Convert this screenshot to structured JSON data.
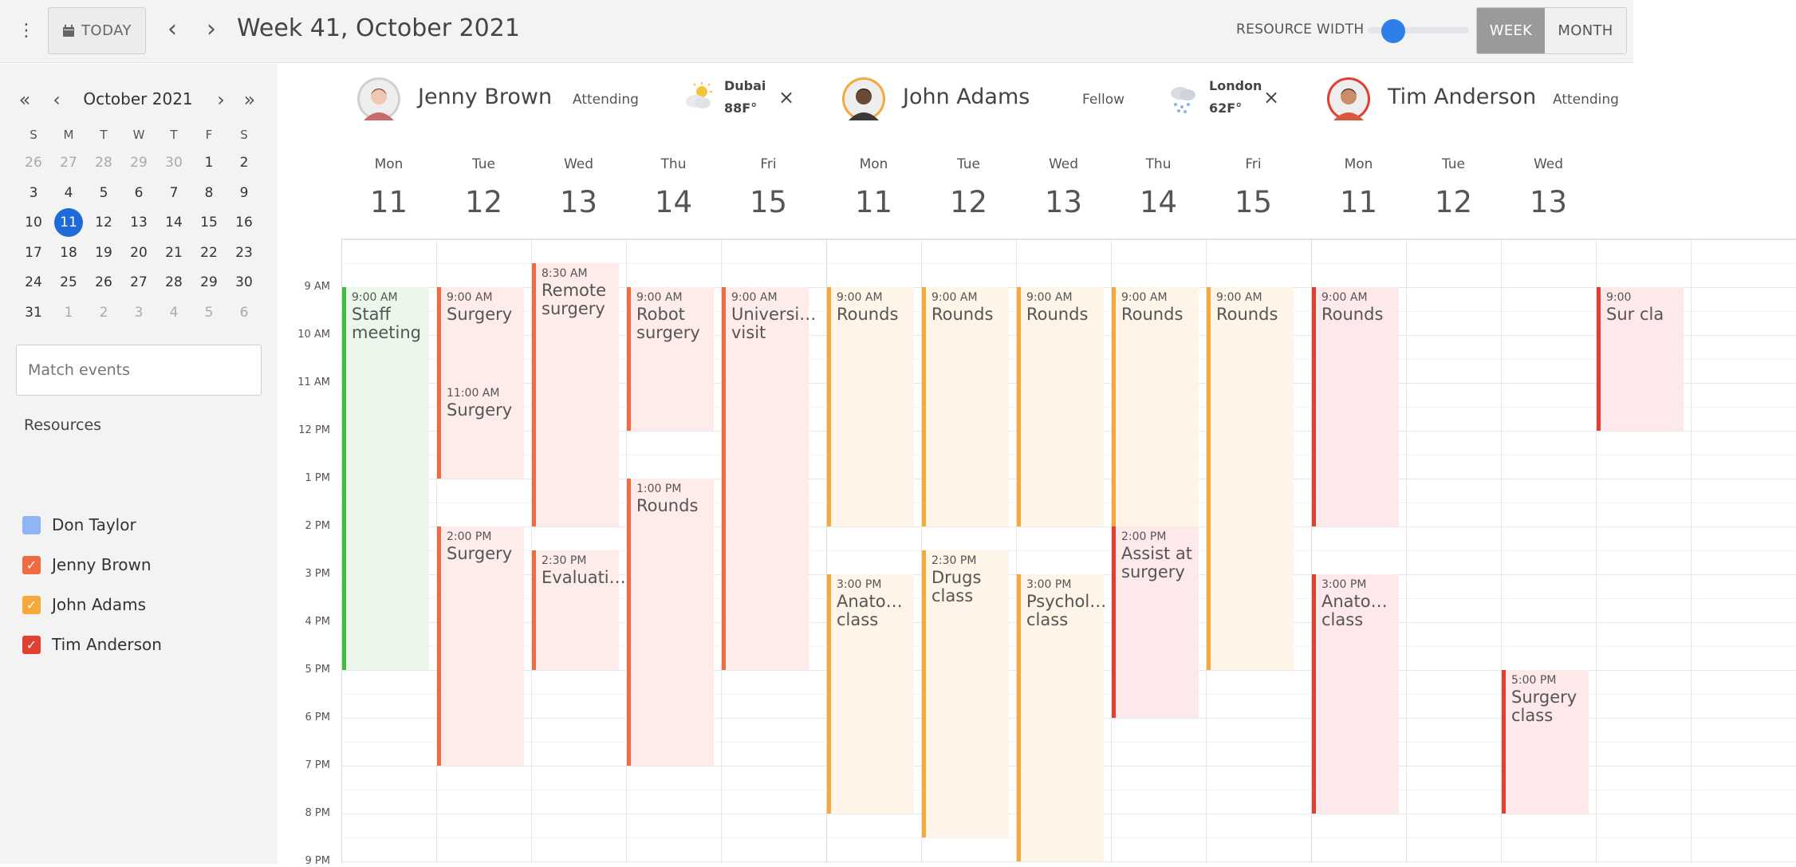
{
  "toolbar": {
    "today_label": "TODAY",
    "range_title": "Week 41, October 2021",
    "resource_width_label": "RESOURCE WIDTH",
    "resource_width_value": 0.25,
    "view_week": "WEEK",
    "view_month": "MONTH",
    "active_view": "WEEK"
  },
  "mini_calendar": {
    "title": "October 2021",
    "dow": [
      "S",
      "M",
      "T",
      "W",
      "T",
      "F",
      "S"
    ],
    "weeks": [
      [
        "26",
        "27",
        "28",
        "29",
        "30",
        "1",
        "2"
      ],
      [
        "3",
        "4",
        "5",
        "6",
        "7",
        "8",
        "9"
      ],
      [
        "10",
        "11",
        "12",
        "13",
        "14",
        "15",
        "16"
      ],
      [
        "17",
        "18",
        "19",
        "20",
        "21",
        "22",
        "23"
      ],
      [
        "24",
        "25",
        "26",
        "27",
        "28",
        "29",
        "30"
      ],
      [
        "31",
        "1",
        "2",
        "3",
        "4",
        "5",
        "6"
      ]
    ],
    "muted": [
      [
        0,
        0
      ],
      [
        0,
        1
      ],
      [
        0,
        2
      ],
      [
        0,
        3
      ],
      [
        0,
        4
      ],
      [
        5,
        1
      ],
      [
        5,
        2
      ],
      [
        5,
        3
      ],
      [
        5,
        4
      ],
      [
        5,
        5
      ],
      [
        5,
        6
      ]
    ],
    "selected": [
      2,
      1
    ]
  },
  "search": {
    "placeholder": "Match events"
  },
  "resources_title": "Resources",
  "resources": [
    {
      "name": "Don Taylor",
      "color": "#8fb5f5",
      "checked": false
    },
    {
      "name": "Jenny Brown",
      "color": "#f06b41",
      "checked": true
    },
    {
      "name": "John Adams",
      "color": "#f4a93a",
      "checked": true
    },
    {
      "name": "Tim Anderson",
      "color": "#e23e32",
      "checked": true
    }
  ],
  "time_labels": [
    "9 AM",
    "10 AM",
    "11 AM",
    "12 PM",
    "1 PM",
    "2 PM",
    "3 PM",
    "4 PM",
    "5 PM",
    "6 PM",
    "7 PM",
    "8 PM",
    "9 PM"
  ],
  "columns": [
    {
      "name": "Jenny Brown",
      "role": "Attending",
      "city": "Dubai",
      "temp": "88F°",
      "weather": "sun-cloud-icon",
      "days": [
        {
          "d": "Mon",
          "n": "11"
        },
        {
          "d": "Tue",
          "n": "12"
        },
        {
          "d": "Wed",
          "n": "13"
        },
        {
          "d": "Thu",
          "n": "14"
        },
        {
          "d": "Fri",
          "n": "15"
        }
      ],
      "events": [
        {
          "day": 0,
          "start": 9,
          "end": 17,
          "time": "9:00 AM",
          "title": "Staff meeting",
          "bar": "#3cbf3c",
          "bg": "#eaf7ea"
        },
        {
          "day": 1,
          "start": 9,
          "end": 11,
          "time": "9:00 AM",
          "title": "Surgery",
          "bar": "#f06b41",
          "bg": "#fdecea"
        },
        {
          "day": 1,
          "start": 11,
          "end": 13,
          "time": "11:00 AM",
          "title": "Surgery",
          "bar": "#f06b41",
          "bg": "#fdecea"
        },
        {
          "day": 1,
          "start": 14,
          "end": 19,
          "time": "2:00 PM",
          "title": "Surgery",
          "bar": "#f06b41",
          "bg": "#fdecea"
        },
        {
          "day": 2,
          "start": 8.5,
          "end": 14,
          "time": "8:30 AM",
          "title": "Remote surgery",
          "bar": "#f06b41",
          "bg": "#fdecea"
        },
        {
          "day": 2,
          "start": 14.5,
          "end": 17,
          "time": "2:30 PM",
          "title": "Evaluati…",
          "bar": "#f06b41",
          "bg": "#fdecea"
        },
        {
          "day": 3,
          "start": 9,
          "end": 12,
          "time": "9:00 AM",
          "title": "Robot surgery",
          "bar": "#f06b41",
          "bg": "#fdecea"
        },
        {
          "day": 3,
          "start": 13,
          "end": 19,
          "time": "1:00 PM",
          "title": "Rounds",
          "bar": "#f06b41",
          "bg": "#fdecea"
        },
        {
          "day": 4,
          "start": 9,
          "end": 17,
          "time": "9:00 AM",
          "title": "Universi… visit",
          "bar": "#f06b41",
          "bg": "#fdecea"
        }
      ]
    },
    {
      "name": "John Adams",
      "role": "Fellow",
      "city": "London",
      "temp": "62F°",
      "weather": "snow-cloud-icon",
      "days": [
        {
          "d": "Mon",
          "n": "11"
        },
        {
          "d": "Tue",
          "n": "12"
        },
        {
          "d": "Wed",
          "n": "13"
        },
        {
          "d": "Thu",
          "n": "14"
        },
        {
          "d": "Fri",
          "n": "15"
        }
      ],
      "events": [
        {
          "day": 0,
          "start": 9,
          "end": 14,
          "time": "9:00 AM",
          "title": "Rounds",
          "bar": "#f4a93a",
          "bg": "#fef4e8"
        },
        {
          "day": 0,
          "start": 15,
          "end": 20,
          "time": "3:00 PM",
          "title": "Anato… class",
          "bar": "#f4a93a",
          "bg": "#fef4e8"
        },
        {
          "day": 1,
          "start": 9,
          "end": 14,
          "time": "9:00 AM",
          "title": "Rounds",
          "bar": "#f4a93a",
          "bg": "#fef4e8"
        },
        {
          "day": 1,
          "start": 14.5,
          "end": 20.5,
          "time": "2:30 PM",
          "title": "Drugs class",
          "bar": "#f4a93a",
          "bg": "#fef4e8"
        },
        {
          "day": 2,
          "start": 9,
          "end": 14,
          "time": "9:00 AM",
          "title": "Rounds",
          "bar": "#f4a93a",
          "bg": "#fef4e8"
        },
        {
          "day": 2,
          "start": 15,
          "end": 21,
          "time": "3:00 PM",
          "title": "Psychol… class",
          "bar": "#f4a93a",
          "bg": "#fef4e8"
        },
        {
          "day": 3,
          "start": 9,
          "end": 14,
          "time": "9:00 AM",
          "title": "Rounds",
          "bar": "#f4a93a",
          "bg": "#fef4e8"
        },
        {
          "day": 3,
          "start": 14,
          "end": 18,
          "time": "2:00 PM",
          "title": "Assist at surgery",
          "bar": "#e23e32",
          "bg": "#fde8ea"
        },
        {
          "day": 4,
          "start": 9,
          "end": 17,
          "time": "9:00 AM",
          "title": "Rounds",
          "bar": "#f4a93a",
          "bg": "#fef4e8"
        }
      ]
    },
    {
      "name": "Tim Anderson",
      "role": "Attending",
      "city": "",
      "temp": "",
      "weather": "",
      "days": [
        {
          "d": "Mon",
          "n": "11"
        },
        {
          "d": "Tue",
          "n": "12"
        },
        {
          "d": "Wed",
          "n": "13"
        },
        {
          "d": "",
          "n": ""
        },
        {
          "d": "",
          "n": ""
        }
      ],
      "events": [
        {
          "day": 0,
          "start": 9,
          "end": 14,
          "time": "9:00 AM",
          "title": "Rounds",
          "bar": "#e23e32",
          "bg": "#fde8ea"
        },
        {
          "day": 0,
          "start": 15,
          "end": 20,
          "time": "3:00 PM",
          "title": "Anato… class",
          "bar": "#e23e32",
          "bg": "#fde8ea"
        },
        {
          "day": 2,
          "start": 17,
          "end": 20,
          "time": "5:00 PM",
          "title": "Surgery class",
          "bar": "#e23e32",
          "bg": "#fde8ea"
        },
        {
          "day": 3,
          "start": 9,
          "end": 12,
          "time": "9:00",
          "title": "Sur cla",
          "bar": "#e23e32",
          "bg": "#fde8ea"
        }
      ]
    }
  ]
}
